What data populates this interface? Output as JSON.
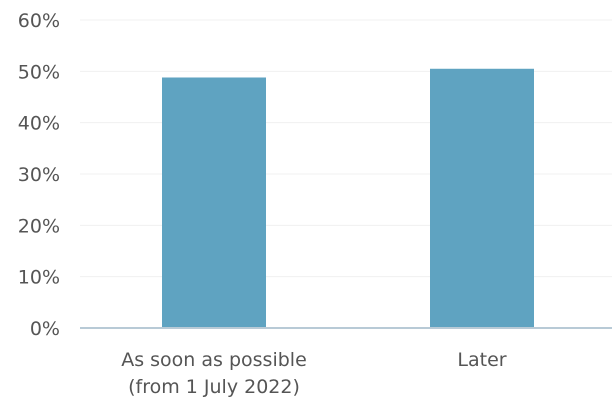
{
  "chart_data": {
    "type": "bar",
    "categories": [
      [
        "As soon as possible",
        "(from 1 July 2022)"
      ],
      [
        "Later"
      ]
    ],
    "values": [
      48.8,
      50.5
    ],
    "y_ticks": [
      "0%",
      "10%",
      "20%",
      "30%",
      "40%",
      "50%",
      "60%"
    ],
    "ylim": [
      0,
      60
    ],
    "grid": true,
    "bar_color": "#5fa3c1",
    "axis_color": "#b8cad6",
    "text_color": "#555555"
  }
}
